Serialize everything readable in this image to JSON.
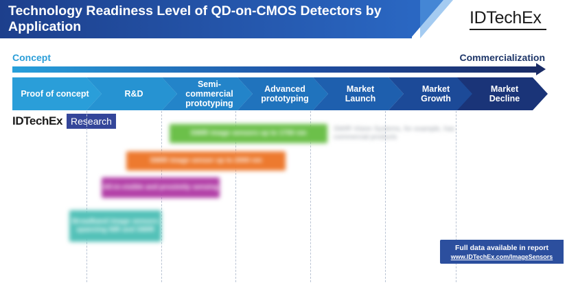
{
  "title": "Technology Readiness Level of QD-on-CMOS Detectors by Application",
  "logo": "IDTechEx",
  "research_logo": {
    "brand": "IDTechEx",
    "tag": "Research"
  },
  "stages": {
    "start": "Concept",
    "end": "Commercialization"
  },
  "phases": [
    {
      "label": "Proof of concept",
      "color": "#2a9ed9"
    },
    {
      "label": "R&D",
      "color": "#2693d2"
    },
    {
      "label": "Semi-\ncommercial\nprototyping",
      "color": "#2384c9"
    },
    {
      "label": "Advanced\nprototyping",
      "color": "#2073bd"
    },
    {
      "label": "Market\nLaunch",
      "color": "#1e5fae"
    },
    {
      "label": "Market\nGrowth",
      "color": "#1c4a98"
    },
    {
      "label": "Market\nDecline",
      "color": "#1a3478"
    }
  ],
  "applications": [
    {
      "text": "SWIR image sensors up to 1700 nm",
      "color": "#6cc04a"
    },
    {
      "text": "SWIR image sensor up to 2000 nm",
      "color": "#ed7a2f"
    },
    {
      "text": "All-in-visible and proximity sensing",
      "color": "#b23fa7"
    },
    {
      "text": "Broadband image sensors spanning NIR and SWIR",
      "color": "#53c1b8"
    }
  ],
  "note": "SWIR Vision Systems, for example, has commercial products",
  "footer": {
    "line1": "Full data available in report",
    "line2": "www.IDTechEx.com/ImageSensors"
  }
}
